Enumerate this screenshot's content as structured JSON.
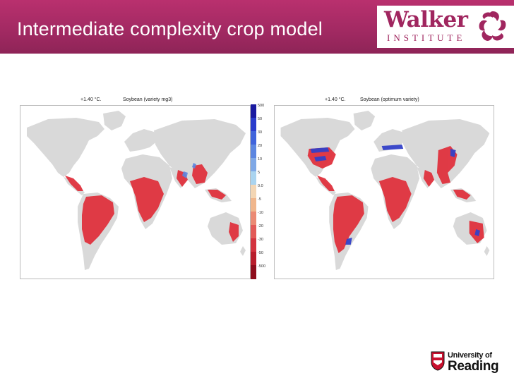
{
  "header": {
    "title": "Intermediate complexity crop model",
    "logo_word": "Walker",
    "logo_sub": "INSTITUTE"
  },
  "maps": [
    {
      "caption_temp": "+1.40 °C.",
      "caption_crop": "Soybean (variety mg3)"
    },
    {
      "caption_temp": "+1.40 °C.",
      "caption_crop": "Soybean (optimum variety)"
    }
  ],
  "colorbar": {
    "labels": [
      "500",
      "50",
      "30",
      "20",
      "10",
      "5",
      "0.0",
      "-5",
      "-10",
      "-20",
      "-30",
      "-50",
      "-500"
    ],
    "colors": [
      "#1a1aa0",
      "#2a3ccc",
      "#3f63db",
      "#5c86e0",
      "#7fa8e6",
      "#aad4ef",
      "#f3d6b4",
      "#f0b68c",
      "#eb8a74",
      "#e25a58",
      "#d3333f",
      "#b81d2c",
      "#8e0d1c"
    ]
  },
  "footer": {
    "uni_line1": "University of",
    "uni_line2": "Reading"
  },
  "colors": {
    "banner": "#a32a63",
    "land": "#d9d9d9",
    "decline": "#e0323e",
    "increase": "#3340c8"
  }
}
